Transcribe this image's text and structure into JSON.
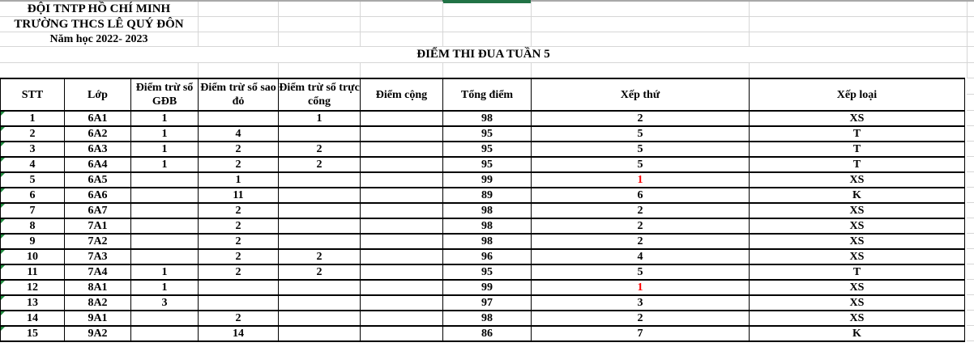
{
  "header": {
    "org": "ĐỘI TNTP HỒ CHÍ MINH",
    "school": "TRƯỜNG THCS LÊ QUÝ ĐÔN",
    "year": "Năm học 2022- 2023"
  },
  "title": "ĐIỂM THI ĐUA TUẦN 5",
  "table": {
    "columns": [
      "STT",
      "Lớp",
      "Điểm trừ sổ GĐB",
      "Điểm trừ sổ sao đỏ",
      "Điểm trừ sổ trực cổng",
      "Điểm cộng",
      "Tổng điểm",
      "Xếp thứ",
      "Xếp loại"
    ],
    "rows": [
      {
        "stt": "1",
        "lop": "6A1",
        "tru_gdb": "1",
        "tru_saodo": "",
        "tru_truccong": "1",
        "diem_cong": "",
        "tong_diem": "98",
        "xep_thu": "2",
        "xep_loai": "XS",
        "xep_thu_red": false
      },
      {
        "stt": "2",
        "lop": "6A2",
        "tru_gdb": "1",
        "tru_saodo": "4",
        "tru_truccong": "",
        "diem_cong": "",
        "tong_diem": "95",
        "xep_thu": "5",
        "xep_loai": "T",
        "xep_thu_red": false
      },
      {
        "stt": "3",
        "lop": "6A3",
        "tru_gdb": "1",
        "tru_saodo": "2",
        "tru_truccong": "2",
        "diem_cong": "",
        "tong_diem": "95",
        "xep_thu": "5",
        "xep_loai": "T",
        "xep_thu_red": false
      },
      {
        "stt": "4",
        "lop": "6A4",
        "tru_gdb": "1",
        "tru_saodo": "2",
        "tru_truccong": "2",
        "diem_cong": "",
        "tong_diem": "95",
        "xep_thu": "5",
        "xep_loai": "T",
        "xep_thu_red": false
      },
      {
        "stt": "5",
        "lop": "6A5",
        "tru_gdb": "",
        "tru_saodo": "1",
        "tru_truccong": "",
        "diem_cong": "",
        "tong_diem": "99",
        "xep_thu": "1",
        "xep_loai": "XS",
        "xep_thu_red": true
      },
      {
        "stt": "6",
        "lop": "6A6",
        "tru_gdb": "",
        "tru_saodo": "11",
        "tru_truccong": "",
        "diem_cong": "",
        "tong_diem": "89",
        "xep_thu": "6",
        "xep_loai": "K",
        "xep_thu_red": false
      },
      {
        "stt": "7",
        "lop": "6A7",
        "tru_gdb": "",
        "tru_saodo": "2",
        "tru_truccong": "",
        "diem_cong": "",
        "tong_diem": "98",
        "xep_thu": "2",
        "xep_loai": "XS",
        "xep_thu_red": false
      },
      {
        "stt": "8",
        "lop": "7A1",
        "tru_gdb": "",
        "tru_saodo": "2",
        "tru_truccong": "",
        "diem_cong": "",
        "tong_diem": "98",
        "xep_thu": "2",
        "xep_loai": "XS",
        "xep_thu_red": false
      },
      {
        "stt": "9",
        "lop": "7A2",
        "tru_gdb": "",
        "tru_saodo": "2",
        "tru_truccong": "",
        "diem_cong": "",
        "tong_diem": "98",
        "xep_thu": "2",
        "xep_loai": "XS",
        "xep_thu_red": false
      },
      {
        "stt": "10",
        "lop": "7A3",
        "tru_gdb": "",
        "tru_saodo": "2",
        "tru_truccong": "2",
        "diem_cong": "",
        "tong_diem": "96",
        "xep_thu": "4",
        "xep_loai": "XS",
        "xep_thu_red": false
      },
      {
        "stt": "11",
        "lop": "7A4",
        "tru_gdb": "1",
        "tru_saodo": "2",
        "tru_truccong": "2",
        "diem_cong": "",
        "tong_diem": "95",
        "xep_thu": "5",
        "xep_loai": "T",
        "xep_thu_red": false
      },
      {
        "stt": "12",
        "lop": "8A1",
        "tru_gdb": "1",
        "tru_saodo": "",
        "tru_truccong": "",
        "diem_cong": "",
        "tong_diem": "99",
        "xep_thu": "1",
        "xep_loai": "XS",
        "xep_thu_red": true
      },
      {
        "stt": "13",
        "lop": "8A2",
        "tru_gdb": "3",
        "tru_saodo": "",
        "tru_truccong": "",
        "diem_cong": "",
        "tong_diem": "97",
        "xep_thu": "3",
        "xep_loai": "XS",
        "xep_thu_red": false
      },
      {
        "stt": "14",
        "lop": "9A1",
        "tru_gdb": "",
        "tru_saodo": "2",
        "tru_truccong": "",
        "diem_cong": "",
        "tong_diem": "98",
        "xep_thu": "2",
        "xep_loai": "XS",
        "xep_thu_red": false
      },
      {
        "stt": "15",
        "lop": "9A2",
        "tru_gdb": "",
        "tru_saodo": "14",
        "tru_truccong": "",
        "diem_cong": "",
        "tong_diem": "86",
        "xep_thu": "7",
        "xep_loai": "K",
        "xep_thu_red": false
      }
    ]
  },
  "colors": {
    "rank_highlight_red": "#ff0000",
    "selection_green": "#217346",
    "error_triangle_green": "#1f8b3e",
    "gridline_gray": "#d6d6d6",
    "row_boundary_gray": "#a8a8a8",
    "border_black": "#000000"
  }
}
